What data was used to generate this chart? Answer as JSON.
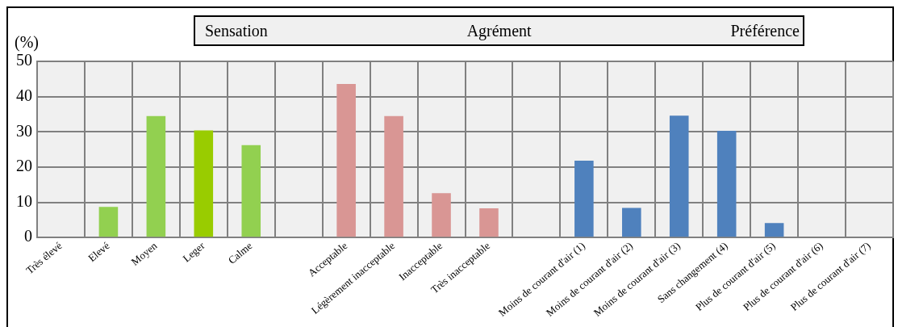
{
  "chart_data": {
    "type": "bar",
    "ylabel": "(%)",
    "annotations": [
      "Sensation",
      "Agrément",
      "Préférence"
    ],
    "categories": [
      "Très élevé",
      "Elevé",
      "Moyen",
      "Leger",
      "Calme",
      null,
      "Acceptable",
      "Légèrement inacceptable",
      "Inacceptable",
      "Très inacceptable",
      null,
      "Moins de courant d'air (1)",
      "Moins de courant d'air (2)",
      "Moins de courant d'air (3)",
      "Sans changement (4)",
      "Plus de courant d'air (5)",
      "Plus de courant d'air (6)",
      "Plus de courant d'air (7)"
    ],
    "values": [
      0,
      8.7,
      34.5,
      30.4,
      26.2,
      null,
      43.6,
      34.5,
      12.6,
      8.3,
      null,
      21.8,
      8.4,
      34.6,
      30.3,
      4.1,
      0,
      0
    ],
    "colors": [
      "#92d050",
      "#92d050",
      "#92d050",
      "#99cc00",
      "#92d050",
      "#92d050",
      "#d99694",
      "#d99694",
      "#d99694",
      "#d99694",
      "#4f81bd",
      "#4f81bd",
      "#4f81bd",
      "#4f81bd",
      "#4f81bd",
      "#4f81bd",
      "#4f81bd",
      "#4f81bd"
    ],
    "ylim": [
      0,
      50
    ],
    "yticks": [
      0,
      10,
      20,
      30,
      40,
      50
    ],
    "grid": true,
    "legend": false
  }
}
